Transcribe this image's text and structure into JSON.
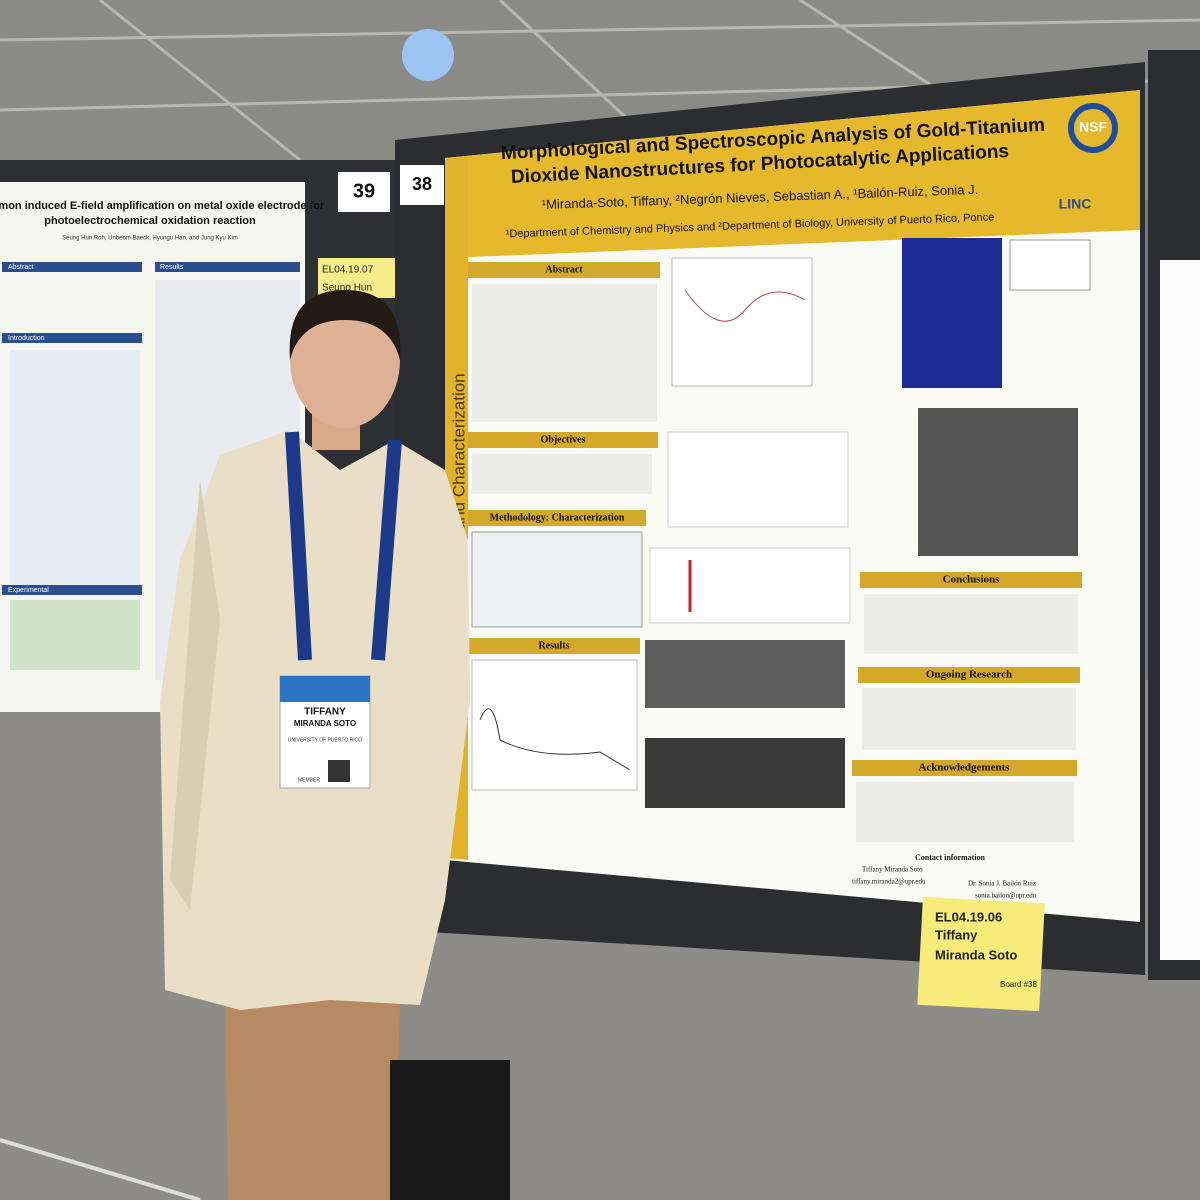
{
  "left_poster": {
    "title_lines": [
      "Plasmon induced E-field amplification on metal oxide electrode for",
      "photoelectrochemical oxidation reaction"
    ],
    "authors": "Seung Hun Roh, Unbeom Baeck, Hyungu Han, and Jung Kyu Kim",
    "sections": [
      "Abstract",
      "Results",
      "Introduction",
      "Experimental"
    ],
    "board_number": "39",
    "board_label": "EL04.19.07",
    "board_label_name": "Seung Hun"
  },
  "main_poster": {
    "board_number": "38",
    "side_text": "otechnology and Characterization",
    "title_lines": [
      "Morphological and Spectroscopic Analysis of Gold-Titanium",
      "Dioxide Nanostructures for Photocatalytic Applications"
    ],
    "authors": "¹Miranda-Soto, Tiffany, ²Negrón Nieves, Sebastian A., ¹Bailón-Ruiz, Sonia J.",
    "affiliation": "¹Department of Chemistry and Physics and ²Department of Biology, University of Puerto Rico, Ponce",
    "logo_left": "NSF",
    "logo_right": "LINC",
    "sections": [
      "Abstract",
      "Objectives",
      "Methodology: Characterization",
      "Results",
      "Conclusions",
      "Ongoing Research",
      "Acknowledgements"
    ],
    "contact_heading": "Contact information",
    "contact_1_name": "Tiffany Miranda Soto",
    "contact_1_email": "tiffany.miranda2@upr.edu",
    "contact_2_name": "Dr. Sonia J. Bailón Ruiz",
    "contact_2_email": "sonia.bailon@upr.edu",
    "label_lines": [
      "EL04.19.06",
      "Tiffany",
      "Miranda Soto"
    ],
    "label_board": "Board #38"
  },
  "badge": {
    "first_name": "TIFFANY",
    "last_name": "MIRANDA SOTO",
    "institution": "UNIVERSITY OF PUERTO RICO",
    "role": "MEMBER"
  }
}
